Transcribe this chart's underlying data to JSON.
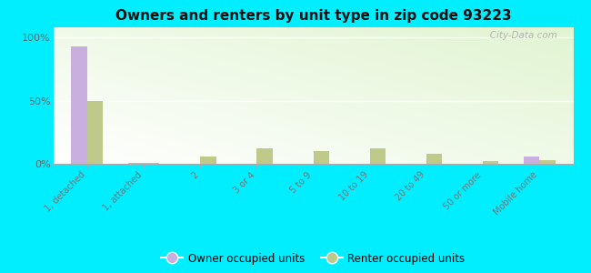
{
  "title": "Owners and renters by unit type in zip code 93223",
  "categories": [
    "1, detached",
    "1, attached",
    "2",
    "3 or 4",
    "5 to 9",
    "10 to 19",
    "20 to 49",
    "50 or more",
    "Mobile home"
  ],
  "owner_values": [
    93,
    1,
    0,
    0,
    0,
    0,
    0,
    0,
    6
  ],
  "renter_values": [
    50,
    1,
    6,
    12,
    10,
    12,
    8,
    2,
    3
  ],
  "owner_color": "#c9aee0",
  "renter_color": "#bec98a",
  "background_color": "#00eeff",
  "plot_bg": "#e8f5e0",
  "ylabel_ticks": [
    "0%",
    "50%",
    "100%"
  ],
  "ytick_vals": [
    0,
    50,
    100
  ],
  "ylim": [
    0,
    108
  ],
  "bar_width": 0.28,
  "watermark": "   City-Data.com",
  "legend_owner": "Owner occupied units",
  "legend_renter": "Renter occupied units"
}
